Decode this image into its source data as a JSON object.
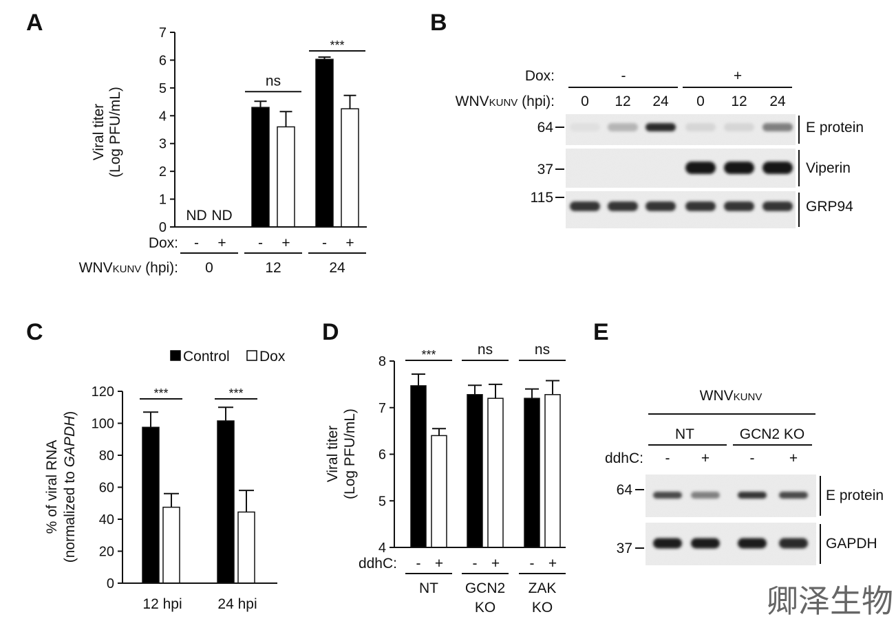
{
  "panels": {
    "a": {
      "label": "A"
    },
    "b": {
      "label": "B"
    },
    "c": {
      "label": "C"
    },
    "d": {
      "label": "D"
    },
    "e": {
      "label": "E"
    }
  },
  "chart_data": [
    {
      "id": "A",
      "type": "bar",
      "ylabel_line1": "Viral titer",
      "ylabel_line2": "(Log PFU/mL)",
      "ylim": [
        0,
        7
      ],
      "yticks": [
        "0",
        "1",
        "2",
        "3",
        "4",
        "5",
        "6",
        "7"
      ],
      "row1_label": "Dox:",
      "row2_label": "WNVKUNV (hpi):",
      "row2_main": "WNV",
      "row2_sub": "KUNV",
      "row2_rest": " (hpi):",
      "treatment_marks": [
        "-",
        "+"
      ],
      "groups": [
        {
          "name": "0",
          "values": [
            0,
            0
          ],
          "errors": [
            0,
            0
          ],
          "nd": [
            "ND",
            "ND"
          ],
          "sig": ""
        },
        {
          "name": "12",
          "values": [
            4.3,
            3.6
          ],
          "errors": [
            0.22,
            0.55
          ],
          "sig": "ns"
        },
        {
          "name": "24",
          "values": [
            6.03,
            4.25
          ],
          "errors": [
            0.08,
            0.48
          ],
          "sig": "***"
        }
      ],
      "series": [
        {
          "name": "-",
          "color": "#000000"
        },
        {
          "name": "+",
          "color": "#ffffff"
        }
      ]
    },
    {
      "id": "C",
      "type": "bar",
      "ylabel_line1": "% of viral RNA",
      "ylabel_line2a": "(normalized to ",
      "ylabel_line2b": "GAPDH",
      "ylabel_line2c": ")",
      "ylim": [
        0,
        120
      ],
      "yticks": [
        "0",
        "20",
        "40",
        "60",
        "80",
        "100",
        "120"
      ],
      "legend": [
        "Control",
        "Dox"
      ],
      "legend_position": "top-right",
      "groups": [
        {
          "name": "12 hpi",
          "values": [
            97.5,
            47.5
          ],
          "errors": [
            9.5,
            8.5
          ],
          "sig": "***"
        },
        {
          "name": "24 hpi",
          "values": [
            101.5,
            44.5
          ],
          "errors": [
            8.5,
            13.5
          ],
          "sig": "***"
        }
      ],
      "series": [
        {
          "name": "Control",
          "color": "#000000"
        },
        {
          "name": "Dox",
          "color": "#ffffff"
        }
      ]
    },
    {
      "id": "D",
      "type": "bar",
      "ylabel_line1": "Viral titer",
      "ylabel_line2": "(Log PFU/mL)",
      "ylim": [
        4,
        8
      ],
      "yticks": [
        "4",
        "5",
        "6",
        "7",
        "8"
      ],
      "row1_label": "ddhC:",
      "treatment_marks": [
        "-",
        "+"
      ],
      "groups": [
        {
          "name_line1": "NT",
          "name_line2": "",
          "values": [
            7.47,
            6.4
          ],
          "errors": [
            0.25,
            0.15
          ],
          "sig": "***"
        },
        {
          "name_line1": "GCN2",
          "name_line2": "KO",
          "values": [
            7.28,
            7.2
          ],
          "errors": [
            0.2,
            0.3
          ],
          "sig": "ns"
        },
        {
          "name_line1": "ZAK",
          "name_line2": "KO",
          "values": [
            7.2,
            7.28
          ],
          "errors": [
            0.2,
            0.3
          ],
          "sig": "ns"
        }
      ],
      "series": [
        {
          "name": "-",
          "color": "#000000"
        },
        {
          "name": "+",
          "color": "#ffffff"
        }
      ]
    }
  ],
  "blots": {
    "b": {
      "treatment_label": "Dox:",
      "groups": [
        "-",
        "+"
      ],
      "time_label_main": "WNV",
      "time_label_sub": "KUNV",
      "time_label_rest": " (hpi):",
      "lanes": [
        "0",
        "12",
        "24",
        "0",
        "12",
        "24"
      ],
      "markers": [
        "64",
        "37",
        "115"
      ],
      "rows": [
        {
          "name": "E protein",
          "intensity": [
            0.05,
            0.25,
            0.9,
            0.1,
            0.1,
            0.5
          ]
        },
        {
          "name": "Viperin",
          "intensity": [
            0,
            0,
            0,
            1,
            1,
            1
          ]
        },
        {
          "name": "GRP94",
          "intensity": [
            0.85,
            0.85,
            0.85,
            0.85,
            0.85,
            0.85
          ]
        }
      ]
    },
    "e": {
      "header_main": "WNV",
      "header_sub": "KUNV",
      "groups": [
        "NT",
        "GCN2 KO"
      ],
      "treatment_label": "ddhC:",
      "lanes": [
        "-",
        "+",
        "-",
        "+"
      ],
      "markers": [
        "64",
        "37"
      ],
      "rows": [
        {
          "name": "E protein",
          "intensity": [
            0.75,
            0.5,
            0.85,
            0.75
          ]
        },
        {
          "name": "GAPDH",
          "intensity": [
            0.95,
            0.95,
            0.95,
            0.9
          ]
        }
      ]
    }
  },
  "watermark": "卿泽生物"
}
